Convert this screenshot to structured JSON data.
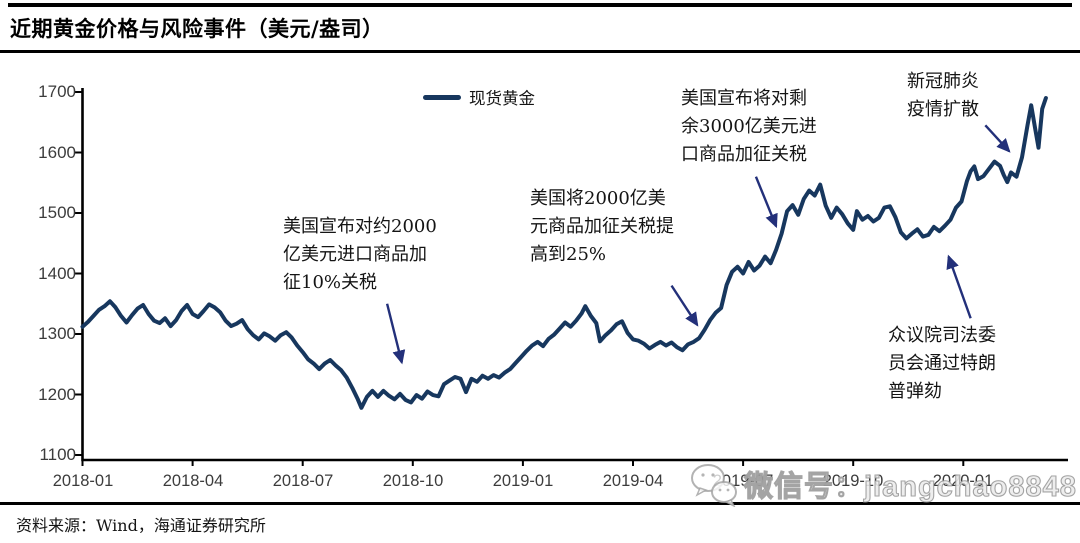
{
  "header": {
    "title": "近期黄金价格与风险事件（美元/盎司）"
  },
  "footer": {
    "source": "资料来源：Wind，海通证券研究所"
  },
  "watermark": {
    "icon": "wechat-icon",
    "text": "微信号：jiangchao8848"
  },
  "chart_data": {
    "type": "line",
    "title": "近期黄金价格与风险事件（美元/盎司）",
    "ylabel": "",
    "xlabel": "",
    "ylim": [
      1100,
      1700
    ],
    "yticks": [
      "1700",
      "1600",
      "1500",
      "1400",
      "1300",
      "1200",
      "1100"
    ],
    "xticks": [
      "2018-01",
      "2018-04",
      "2018-07",
      "2018-10",
      "2019-01",
      "2019-04",
      "2019-07",
      "2019-10",
      "2020-01"
    ],
    "grid": false,
    "legend_position": "top-center",
    "legend": [
      {
        "label": "现货黄金",
        "color": "#17375e"
      }
    ],
    "line_color": "#17375e",
    "arrow_color": "#23307a",
    "x_unit": "months since 2018-01-01 (fractional)",
    "series": [
      {
        "name": "现货黄金",
        "color": "#17375e",
        "t": [
          0.0,
          0.15,
          0.3,
          0.45,
          0.6,
          0.75,
          0.9,
          1.05,
          1.2,
          1.35,
          1.5,
          1.65,
          1.8,
          1.95,
          2.1,
          2.25,
          2.4,
          2.55,
          2.7,
          2.85,
          3.0,
          3.15,
          3.3,
          3.45,
          3.6,
          3.75,
          3.9,
          4.05,
          4.2,
          4.35,
          4.5,
          4.65,
          4.8,
          4.95,
          5.1,
          5.25,
          5.4,
          5.55,
          5.7,
          5.85,
          6.0,
          6.15,
          6.3,
          6.45,
          6.6,
          6.75,
          6.9,
          7.05,
          7.2,
          7.35,
          7.5,
          7.6,
          7.75,
          7.9,
          8.05,
          8.2,
          8.35,
          8.5,
          8.65,
          8.8,
          8.95,
          9.1,
          9.25,
          9.4,
          9.55,
          9.7,
          9.85,
          10.0,
          10.15,
          10.3,
          10.45,
          10.6,
          10.75,
          10.9,
          11.05,
          11.2,
          11.35,
          11.5,
          11.65,
          11.8,
          11.95,
          12.1,
          12.25,
          12.4,
          12.55,
          12.7,
          12.85,
          13.0,
          13.15,
          13.3,
          13.45,
          13.6,
          13.7,
          13.85,
          14.0,
          14.1,
          14.25,
          14.4,
          14.55,
          14.7,
          14.85,
          15.0,
          15.15,
          15.3,
          15.45,
          15.6,
          15.75,
          15.9,
          16.05,
          16.2,
          16.35,
          16.5,
          16.65,
          16.8,
          16.95,
          17.1,
          17.25,
          17.4,
          17.55,
          17.7,
          17.85,
          18.0,
          18.15,
          18.3,
          18.45,
          18.6,
          18.75,
          18.9,
          19.05,
          19.2,
          19.35,
          19.5,
          19.65,
          19.8,
          19.95,
          20.1,
          20.25,
          20.4,
          20.55,
          20.7,
          20.85,
          21.0,
          21.1,
          21.25,
          21.4,
          21.55,
          21.7,
          21.85,
          22.0,
          22.15,
          22.3,
          22.45,
          22.6,
          22.75,
          22.9,
          23.05,
          23.2,
          23.35,
          23.5,
          23.65,
          23.8,
          23.95,
          24.1,
          24.2,
          24.3,
          24.4,
          24.55,
          24.7,
          24.85,
          25.0,
          25.1,
          25.2,
          25.3,
          25.45,
          25.6,
          25.75,
          25.85,
          25.95,
          26.05,
          26.15,
          26.25
        ],
        "v": [
          1312,
          1320,
          1330,
          1340,
          1346,
          1354,
          1344,
          1330,
          1319,
          1331,
          1342,
          1348,
          1333,
          1322,
          1318,
          1326,
          1313,
          1323,
          1338,
          1348,
          1333,
          1328,
          1338,
          1349,
          1344,
          1336,
          1322,
          1313,
          1317,
          1323,
          1308,
          1298,
          1291,
          1301,
          1296,
          1289,
          1298,
          1303,
          1294,
          1281,
          1270,
          1258,
          1251,
          1242,
          1251,
          1257,
          1248,
          1240,
          1228,
          1211,
          1192,
          1178,
          1196,
          1206,
          1196,
          1206,
          1198,
          1192,
          1201,
          1191,
          1187,
          1199,
          1193,
          1205,
          1199,
          1197,
          1217,
          1223,
          1229,
          1226,
          1204,
          1226,
          1221,
          1231,
          1226,
          1232,
          1228,
          1236,
          1242,
          1252,
          1262,
          1272,
          1281,
          1287,
          1280,
          1292,
          1299,
          1309,
          1319,
          1312,
          1322,
          1334,
          1346,
          1330,
          1318,
          1288,
          1298,
          1306,
          1316,
          1321,
          1302,
          1291,
          1289,
          1284,
          1276,
          1282,
          1287,
          1281,
          1286,
          1278,
          1273,
          1283,
          1287,
          1293,
          1307,
          1323,
          1335,
          1343,
          1381,
          1403,
          1411,
          1400,
          1419,
          1405,
          1413,
          1428,
          1417,
          1439,
          1466,
          1503,
          1513,
          1497,
          1523,
          1537,
          1529,
          1547,
          1512,
          1492,
          1509,
          1498,
          1483,
          1472,
          1503,
          1489,
          1495,
          1486,
          1492,
          1509,
          1511,
          1493,
          1468,
          1458,
          1466,
          1473,
          1461,
          1464,
          1477,
          1470,
          1479,
          1489,
          1509,
          1519,
          1553,
          1569,
          1577,
          1556,
          1561,
          1573,
          1585,
          1578,
          1563,
          1551,
          1567,
          1560,
          1592,
          1645,
          1678,
          1642,
          1608,
          1672,
          1690
        ]
      }
    ],
    "annotations": [
      {
        "id": "tariff-10pct",
        "text": "美国宣布对约2000\n亿美元进口商品加\n征10%关税",
        "arrow": {
          "from_t": 8.3,
          "from_price": 1350,
          "to_t": 8.7,
          "to_price": 1253
        }
      },
      {
        "id": "tariff-25pct",
        "text": "美国将2000亿美\n元商品加征关税提\n高到25%",
        "arrow": {
          "from_t": 16.05,
          "from_price": 1380,
          "to_t": 16.75,
          "to_price": 1315
        }
      },
      {
        "id": "tariff-300b",
        "text": "美国宣布将对剩\n余3000亿美元进\n口商品加征关税",
        "arrow": {
          "from_t": 18.35,
          "from_price": 1560,
          "to_t": 18.9,
          "to_price": 1478
        }
      },
      {
        "id": "covid",
        "text": "新冠肺炎\n疫情扩散",
        "arrow": {
          "from_t": 24.6,
          "from_price": 1645,
          "to_t": 25.25,
          "to_price": 1602
        }
      },
      {
        "id": "impeachment",
        "text": "众议院司法委\n员会通过特朗\n普弹劾",
        "arrow": {
          "from_t": 24.2,
          "from_price": 1326,
          "to_t": 23.6,
          "to_price": 1428
        }
      }
    ]
  }
}
